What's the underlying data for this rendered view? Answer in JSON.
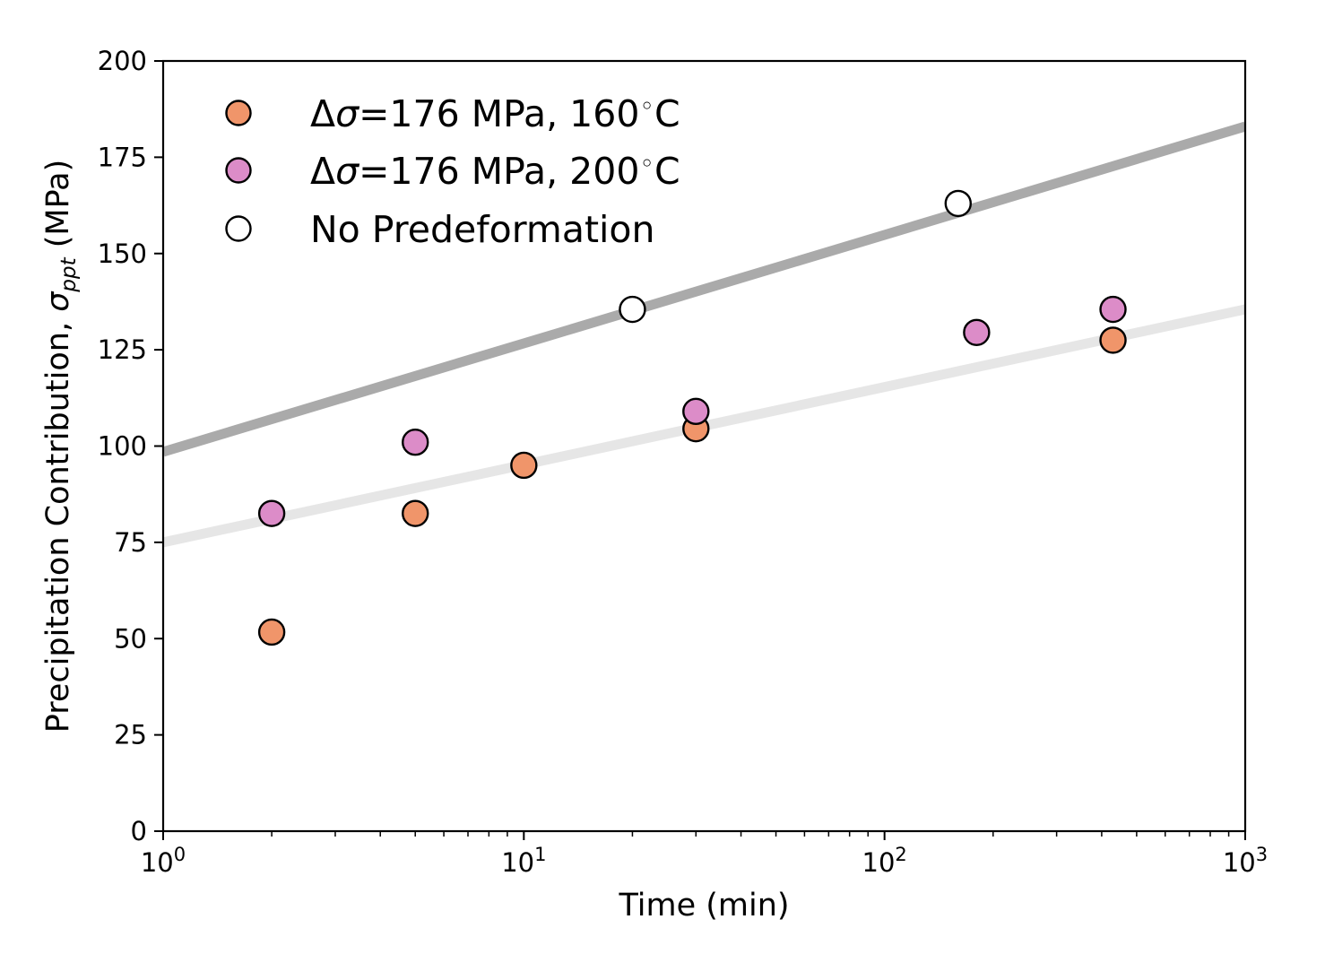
{
  "chart_data": {
    "type": "scatter",
    "title": "",
    "xlabel": "Time (min)",
    "ylabel": "Precipitation Contribution, σ_ppt (MPa)",
    "ylabel_parts": {
      "main": "Precipitation Contribution, ",
      "symbol": "σ",
      "subscript": "ppt",
      "unit": " (MPa)"
    },
    "xscale": "log",
    "xlim": [
      1,
      1000
    ],
    "ylim": [
      0,
      200
    ],
    "xticks": [
      1,
      10,
      100,
      1000
    ],
    "xtick_labels": [
      {
        "base": "10",
        "exp": "0"
      },
      {
        "base": "10",
        "exp": "1"
      },
      {
        "base": "10",
        "exp": "2"
      },
      {
        "base": "10",
        "exp": "3"
      }
    ],
    "yticks": [
      0,
      25,
      50,
      75,
      100,
      125,
      150,
      175,
      200
    ],
    "ytick_labels": [
      "0",
      "25",
      "50",
      "75",
      "100",
      "125",
      "150",
      "175",
      "200"
    ],
    "legend_position": "top-left",
    "series": [
      {
        "name": "Δσ=176 MPa, 160°C",
        "legend": {
          "delta": "Δ",
          "sigma": "σ",
          "text": "=176 MPa, 160",
          "degree": "◦",
          "unit": "C"
        },
        "color": "#f0956a",
        "x": [
          2,
          5,
          10,
          30,
          430
        ],
        "y": [
          51.7,
          82.5,
          95,
          104.5,
          127.5
        ]
      },
      {
        "name": "Δσ=176 MPa, 200°C",
        "legend": {
          "delta": "Δ",
          "sigma": "σ",
          "text": "=176 MPa, 200",
          "degree": "◦",
          "unit": "C"
        },
        "color": "#dc8cc8",
        "x": [
          2,
          5,
          30,
          180,
          430
        ],
        "y": [
          82.5,
          101,
          109,
          129.5,
          135.5
        ]
      },
      {
        "name": "No Predeformation",
        "legend": {
          "text": "No Predeformation"
        },
        "color": "#ffffff",
        "x": [
          20,
          160
        ],
        "y": [
          135.5,
          163
        ]
      }
    ],
    "trend_lines": [
      {
        "name": "No Predeformation fit",
        "color": "#aaaaaa",
        "x": [
          1,
          1000
        ],
        "y": [
          98.5,
          183
        ]
      },
      {
        "name": "Predeformed fit",
        "color": "#e6e6e6",
        "x": [
          1,
          1000
        ],
        "y": [
          75,
          135.5
        ]
      }
    ]
  }
}
